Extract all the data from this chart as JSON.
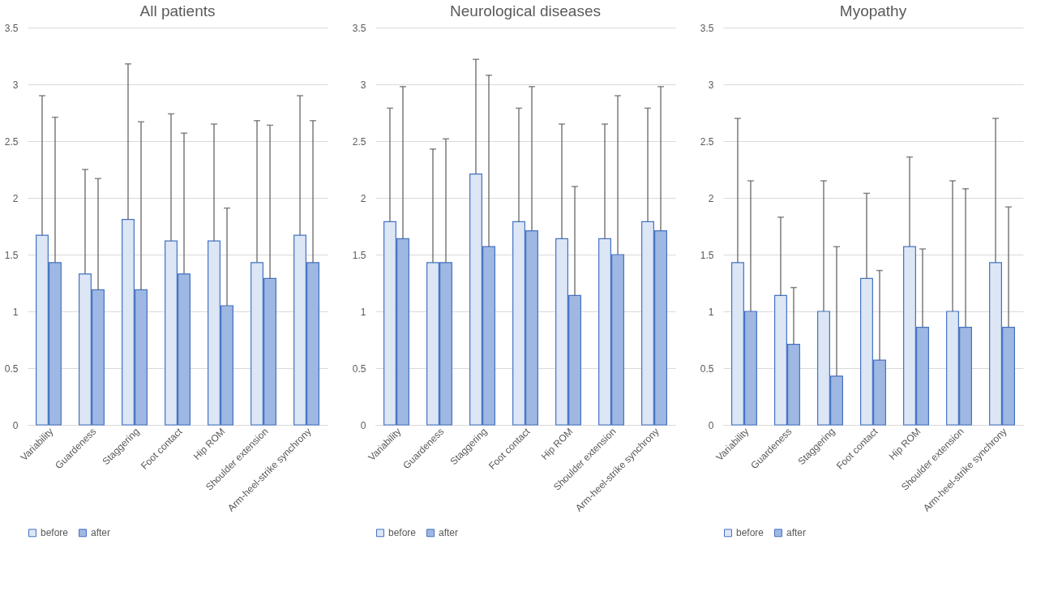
{
  "chart_data": [
    {
      "type": "bar",
      "title": "All patients",
      "categories": [
        "Variability",
        "Guardeness",
        "Staggering",
        "Foot contact",
        "Hip ROM",
        "Shoulder extension",
        "Arm-heel-strike synchrony"
      ],
      "series": [
        {
          "name": "before",
          "color": "#dce6f5",
          "values": [
            1.67,
            1.33,
            1.81,
            1.62,
            1.62,
            1.43,
            1.67
          ],
          "errors": [
            [
              1.67,
              2.9
            ],
            [
              1.33,
              2.25
            ],
            [
              1.81,
              3.18
            ],
            [
              1.62,
              2.74
            ],
            [
              1.62,
              2.65
            ],
            [
              1.43,
              2.68
            ],
            [
              1.67,
              2.9
            ]
          ]
        },
        {
          "name": "after",
          "color": "#9fb8e3",
          "values": [
            1.43,
            1.19,
            1.19,
            1.33,
            1.05,
            1.29,
            1.43
          ],
          "errors": [
            [
              1.43,
              2.71
            ],
            [
              1.19,
              2.17
            ],
            [
              1.19,
              2.67
            ],
            [
              1.33,
              2.57
            ],
            [
              1.05,
              1.91
            ],
            [
              1.29,
              2.64
            ],
            [
              1.43,
              2.68
            ]
          ]
        }
      ],
      "ylim": [
        0,
        3.5
      ],
      "yticks": [
        0,
        0.5,
        1,
        1.5,
        2,
        2.5,
        3,
        3.5
      ],
      "grid": "y",
      "legend": "bottom"
    },
    {
      "type": "bar",
      "title": "Neurological diseases",
      "categories": [
        "Variability",
        "Guardeness",
        "Staggering",
        "Foot contact",
        "Hip ROM",
        "Shoulder extension",
        "Arm-heel-strike synchrony"
      ],
      "series": [
        {
          "name": "before",
          "color": "#dce6f5",
          "values": [
            1.79,
            1.43,
            2.21,
            1.79,
            1.64,
            1.64,
            1.79
          ],
          "errors": [
            [
              1.79,
              2.79
            ],
            [
              1.43,
              2.43
            ],
            [
              2.21,
              3.22
            ],
            [
              1.79,
              2.79
            ],
            [
              1.64,
              2.65
            ],
            [
              1.64,
              2.65
            ],
            [
              1.79,
              2.79
            ]
          ]
        },
        {
          "name": "after",
          "color": "#9fb8e3",
          "values": [
            1.64,
            1.43,
            1.57,
            1.71,
            1.14,
            1.5,
            1.71
          ],
          "errors": [
            [
              1.64,
              2.98
            ],
            [
              1.43,
              2.52
            ],
            [
              1.57,
              3.08
            ],
            [
              1.71,
              2.98
            ],
            [
              1.14,
              2.1
            ],
            [
              1.5,
              2.9
            ],
            [
              1.71,
              2.98
            ]
          ]
        }
      ],
      "ylim": [
        0,
        3.5
      ],
      "yticks": [
        0,
        0.5,
        1,
        1.5,
        2,
        2.5,
        3,
        3.5
      ],
      "grid": "y",
      "legend": "bottom"
    },
    {
      "type": "bar",
      "title": "Myopathy",
      "categories": [
        "Variability",
        "Guardeness",
        "Staggering",
        "Foot contact",
        "Hip ROM",
        "Shoulder extension",
        "Arm-heel-strike synchrony"
      ],
      "series": [
        {
          "name": "before",
          "color": "#dce6f5",
          "values": [
            1.43,
            1.14,
            1.0,
            1.29,
            1.57,
            1.0,
            1.43
          ],
          "errors": [
            [
              1.43,
              2.7
            ],
            [
              1.14,
              1.83
            ],
            [
              1.0,
              2.15
            ],
            [
              1.29,
              2.04
            ],
            [
              1.57,
              2.36
            ],
            [
              1.0,
              2.15
            ],
            [
              1.43,
              2.7
            ]
          ]
        },
        {
          "name": "after",
          "color": "#9fb8e3",
          "values": [
            1.0,
            0.71,
            0.43,
            0.57,
            0.86,
            0.86,
            0.86
          ],
          "errors": [
            [
              1.0,
              2.15
            ],
            [
              0.71,
              1.21
            ],
            [
              0.43,
              1.57
            ],
            [
              0.57,
              1.36
            ],
            [
              0.86,
              1.55
            ],
            [
              0.86,
              2.08
            ],
            [
              0.86,
              1.92
            ]
          ]
        }
      ],
      "ylim": [
        0,
        3.5
      ],
      "yticks": [
        0,
        0.5,
        1,
        1.5,
        2,
        2.5,
        3,
        3.5
      ],
      "grid": "y",
      "legend": "bottom"
    }
  ]
}
